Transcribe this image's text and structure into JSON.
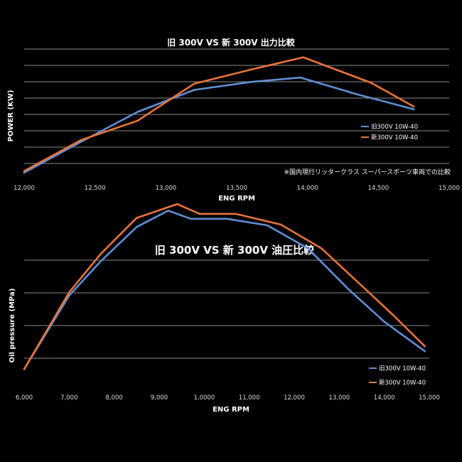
{
  "charts": [
    {
      "type": "line",
      "title": "旧 300V VS 新 300V 出力比較",
      "xlabel": "ENG RPM",
      "ylabel": "POWER (KW)",
      "xlim": [
        12000,
        15000
      ],
      "x_ticks": [
        "12,000",
        "12,500",
        "13,000",
        "13,500",
        "14,000",
        "14,500",
        "15,000"
      ],
      "note": "※国内現行リッタークラス スーパースポーツ車両での比較",
      "legend_position": "right",
      "series": [
        {
          "name": "旧300V 10W-40",
          "color": "#5f8fd6",
          "x": [
            12000,
            12400,
            12800,
            13200,
            13600,
            13950,
            14350,
            14750
          ],
          "y": [
            0.04,
            0.39,
            0.73,
            0.98,
            1.07,
            1.12,
            0.93,
            0.76
          ]
        },
        {
          "name": "新300V 10W-40",
          "color": "#e8733a",
          "x": [
            12000,
            12400,
            12800,
            13200,
            13600,
            13970,
            14450,
            14750
          ],
          "y": [
            0.06,
            0.41,
            0.63,
            1.05,
            1.21,
            1.35,
            1.06,
            0.79
          ]
        }
      ]
    },
    {
      "type": "line",
      "title": "旧 300V VS 新 300V 油圧比較",
      "xlabel": "ENG RPM",
      "ylabel": "Oil pressure (MPa)",
      "xlim": [
        6000,
        15000
      ],
      "x_ticks": [
        "6,000",
        "7,000",
        "8,000",
        "9,000",
        "1,0000",
        "11,000",
        "12,000",
        "13,000",
        "14,000",
        "15,000"
      ],
      "legend_position": "bottom-right",
      "series": [
        {
          "name": "旧300V 10W-40",
          "color": "#5f8fd6",
          "x": [
            6000,
            6500,
            7000,
            7700,
            8500,
            9200,
            9700,
            10500,
            11400,
            12300,
            13200,
            14000,
            14900
          ],
          "y": [
            0.04,
            0.49,
            0.94,
            1.36,
            1.78,
            1.98,
            1.88,
            1.88,
            1.8,
            1.52,
            1.02,
            0.62,
            0.26
          ]
        },
        {
          "name": "新300V 10W-40",
          "color": "#e8733a",
          "x": [
            6000,
            6500,
            7000,
            7700,
            8500,
            9400,
            9900,
            10700,
            11700,
            12600,
            13500,
            14200,
            14900
          ],
          "y": [
            0.04,
            0.51,
            0.98,
            1.45,
            1.89,
            2.06,
            1.94,
            1.94,
            1.81,
            1.52,
            1.06,
            0.7,
            0.32
          ]
        }
      ]
    }
  ]
}
